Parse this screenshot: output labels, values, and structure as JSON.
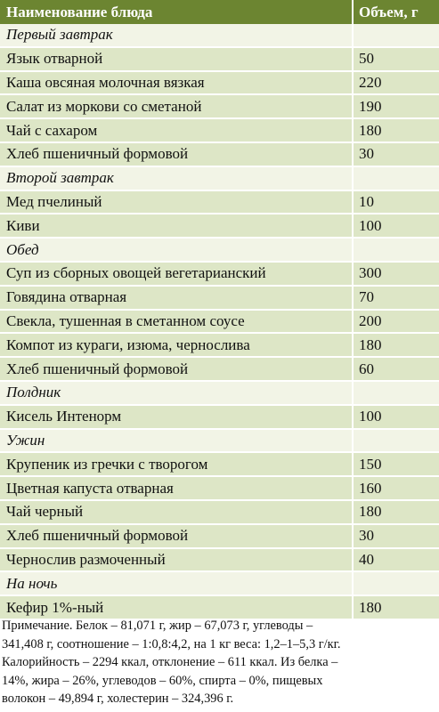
{
  "table": {
    "header": {
      "name": "Наименование блюда",
      "volume": "Объем, г"
    },
    "rows": [
      {
        "type": "section",
        "name": "Первый завтрак",
        "volume": ""
      },
      {
        "type": "item",
        "name": "Язык отварной",
        "volume": "50"
      },
      {
        "type": "item",
        "name": "Каша овсяная молочная вязкая",
        "volume": "220"
      },
      {
        "type": "item",
        "name": "Салат из моркови со сметаной",
        "volume": "190"
      },
      {
        "type": "item",
        "name": "Чай с сахаром",
        "volume": "180"
      },
      {
        "type": "item",
        "name": "Хлеб пшеничный формовой",
        "volume": "30"
      },
      {
        "type": "section",
        "name": "Второй завтрак",
        "volume": ""
      },
      {
        "type": "item",
        "name": "Мед пчелиный",
        "volume": "10"
      },
      {
        "type": "item",
        "name": "Киви",
        "volume": "100"
      },
      {
        "type": "section",
        "name": "Обед",
        "volume": ""
      },
      {
        "type": "item",
        "name": "Суп из сборных овощей вегетарианский",
        "volume": "300"
      },
      {
        "type": "item",
        "name": "Говядина отварная",
        "volume": "70"
      },
      {
        "type": "item",
        "name": "Свекла, тушенная в сметанном соусе",
        "volume": "200"
      },
      {
        "type": "item",
        "name": "Компот из кураги, изюма, чернослива",
        "volume": "180"
      },
      {
        "type": "item",
        "name": "Хлеб пшеничный формовой",
        "volume": "60"
      },
      {
        "type": "section",
        "name": "Полдник",
        "volume": ""
      },
      {
        "type": "item",
        "name": "Кисель Интенорм",
        "volume": "100"
      },
      {
        "type": "section",
        "name": "Ужин",
        "volume": ""
      },
      {
        "type": "item",
        "name": "Крупеник из гречки с творогом",
        "volume": "150"
      },
      {
        "type": "item",
        "name": "Цветная капуста отварная",
        "volume": "160"
      },
      {
        "type": "item",
        "name": "Чай черный",
        "volume": "180"
      },
      {
        "type": "item",
        "name": "Хлеб пшеничный формовой",
        "volume": "30"
      },
      {
        "type": "item",
        "name": "Чернослив размоченный",
        "volume": "40"
      },
      {
        "type": "section",
        "name": "На ночь",
        "volume": ""
      },
      {
        "type": "item",
        "name": "Кефир 1%-ный",
        "volume": "180"
      }
    ]
  },
  "note": {
    "lines": [
      "Примечание. Белок – 81,071 г, жир – 67,073 г, углеводы –",
      "341,408 г, соотношение – 1:0,8:4,2, на 1 кг веса: 1,2–1–5,3 г/кг.",
      "Калорийность – 2294 ккал, отклонение – 611 ккал. Из белка –",
      "14%, жира – 26%, углеводов – 60%, спирта – 0%, пищевых",
      "волокон – 49,894 г, холестерин – 324,396 г."
    ]
  },
  "colors": {
    "header_bg": "#6c8531",
    "section_bg": "#f2f4e6",
    "item_bg": "#dde6c6"
  }
}
